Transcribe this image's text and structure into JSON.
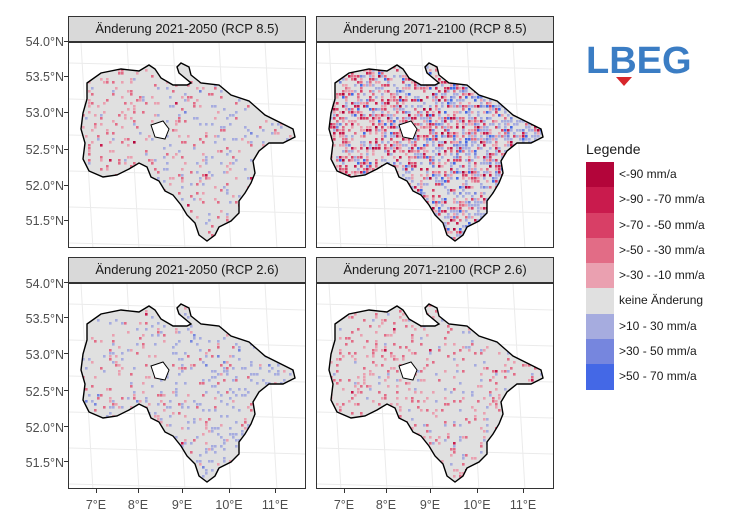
{
  "panels": [
    {
      "title": "Änderung 2021-2050 (RCP 8.5)",
      "pattern": [
        0.09,
        0.02,
        0.01,
        0.05,
        0.02,
        0.0
      ]
    },
    {
      "title": "Änderung 2071-2100 (RCP 8.5)",
      "pattern": [
        0.3,
        0.15,
        0.05,
        0.25,
        0.16,
        0.04
      ]
    },
    {
      "title": "Änderung 2021-2050 (RCP 2.6)",
      "pattern": [
        0.06,
        0.015,
        0.0,
        0.11,
        0.04,
        0.0
      ]
    },
    {
      "title": "Änderung 2071-2100 (RCP 2.6)",
      "pattern": [
        0.13,
        0.04,
        0.0,
        0.03,
        0.01,
        0.0
      ]
    }
  ],
  "y_ticks": [
    "54.0°N",
    "53.5°N",
    "53.0°N",
    "52.5°N",
    "52.0°N",
    "51.5°N"
  ],
  "x_ticks": [
    "7°E",
    "8°E",
    "9°E",
    "10°E",
    "11°E"
  ],
  "logo": {
    "text": "LBEG",
    "color_blue": "#3b7dc4",
    "color_red": "#d7262b"
  },
  "legend": {
    "title": "Legende",
    "items": [
      {
        "label": "<-90 mm/a",
        "color": "#b3053a"
      },
      {
        "label": ">-90 - -70 mm/a",
        "color": "#c91b4d"
      },
      {
        "label": ">-70 - -50 mm/a",
        "color": "#d83f66"
      },
      {
        "label": ">-50 - -30 mm/a",
        "color": "#e26c86"
      },
      {
        "label": ">-30 - -10 mm/a",
        "color": "#eaa0b0"
      },
      {
        "label": "keine Änderung",
        "color": "#e0e0e0"
      },
      {
        "label": ">10 - 30 mm/a",
        "color": "#a6acdf"
      },
      {
        "label": ">30 - 50 mm/a",
        "color": "#7686de"
      },
      {
        "label": ">50 - 70 mm/a",
        "color": "#4468e6"
      }
    ]
  }
}
